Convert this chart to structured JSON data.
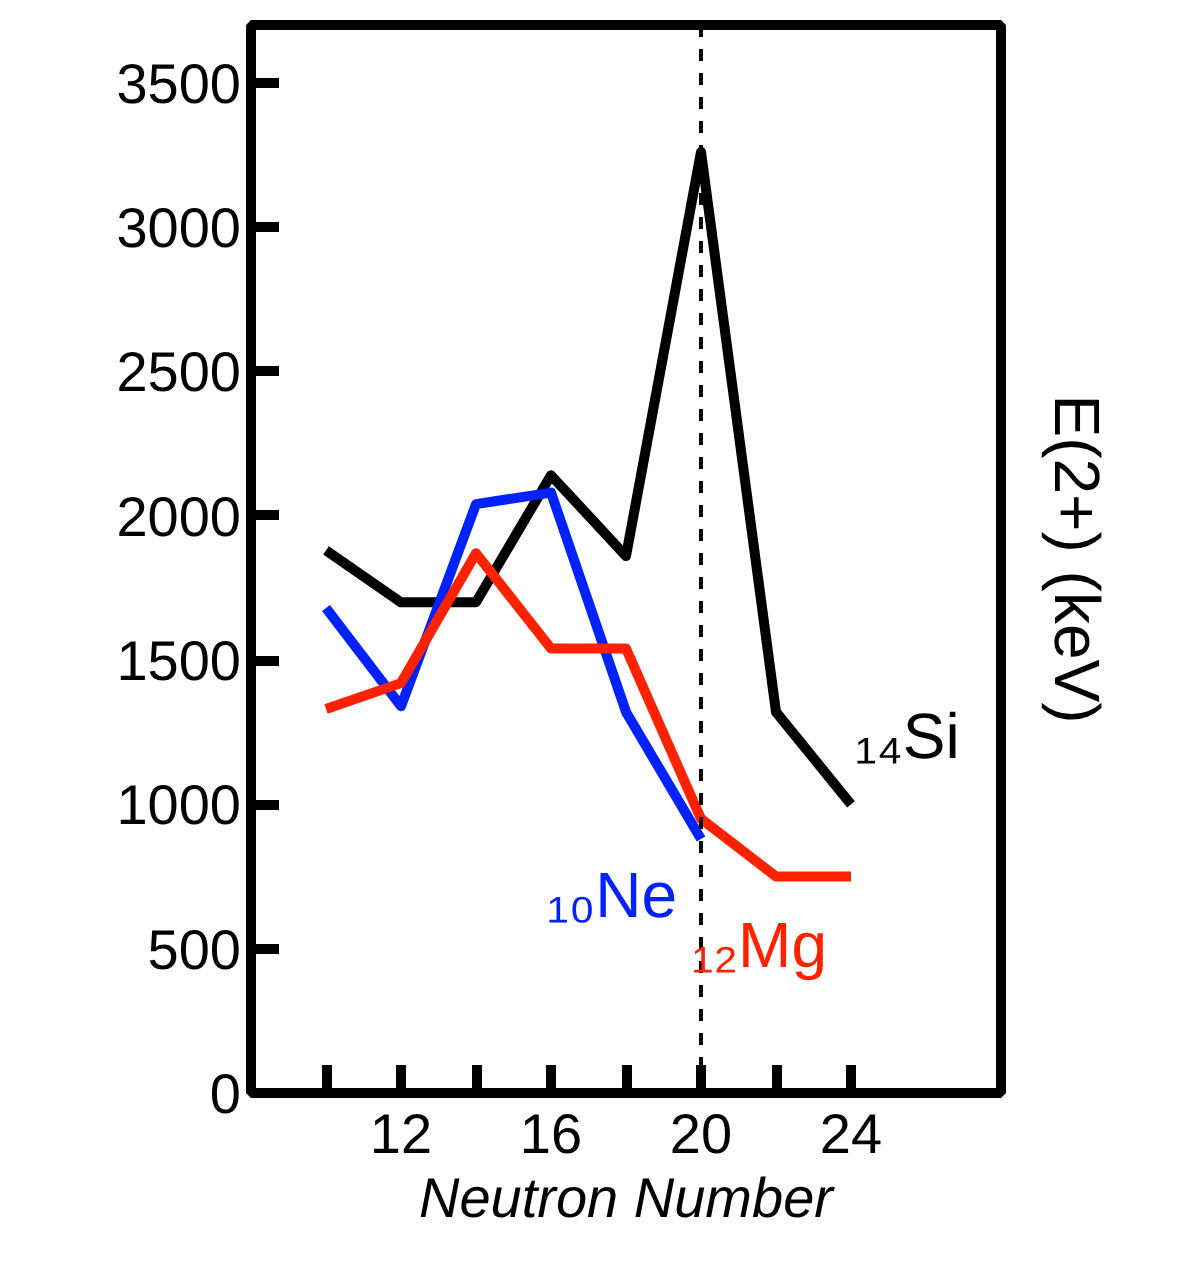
{
  "chart_data": {
    "type": "line",
    "xlabel": "Neutron Number",
    "ylabel": "E(2+) (keV)",
    "x": [
      10,
      12,
      14,
      16,
      18,
      20,
      22,
      24
    ],
    "series": [
      {
        "name": "₁₄Si",
        "color": "#000000",
        "values": [
          1880,
          1700,
          1700,
          2140,
          1860,
          3260,
          1320,
          1000
        ]
      },
      {
        "name": "₁₀Ne",
        "color": "#0022ff",
        "values": [
          1680,
          1340,
          2040,
          2080,
          1320,
          880,
          null,
          null
        ]
      },
      {
        "name": "₁₂Mg",
        "color": "#ff2200",
        "values": [
          1330,
          1420,
          1870,
          1540,
          1540,
          950,
          750,
          750
        ]
      }
    ],
    "xlim": [
      8,
      28
    ],
    "ylim": [
      0,
      3700
    ],
    "xticks": [
      {
        "value": 10,
        "label": null
      },
      12,
      {
        "value": 14,
        "label": null
      },
      16,
      {
        "value": 18,
        "label": null
      },
      20,
      {
        "value": 22,
        "label": null
      },
      24
    ],
    "yticks": [
      0,
      500,
      1000,
      1500,
      2000,
      2500,
      3000,
      3500
    ],
    "ref_lines": [
      {
        "axis": "x",
        "value": 20,
        "color": "#000000",
        "line_style": "dashed"
      }
    ],
    "grid": false,
    "line_style": "solid",
    "marker": "none"
  }
}
